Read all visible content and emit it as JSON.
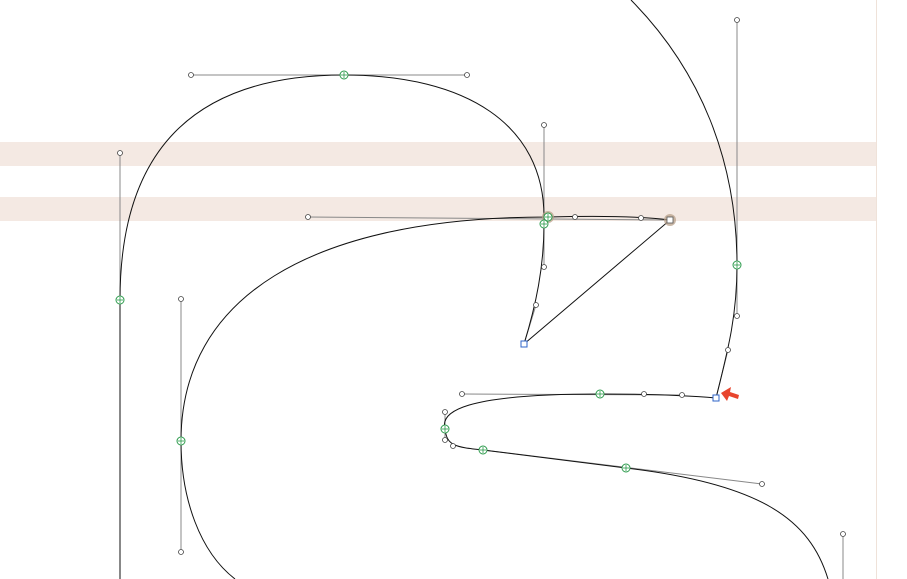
{
  "editor": {
    "view": "glyph-outline-canvas",
    "colors": {
      "background": "#ffffff",
      "guide_band": "#f4e9e3",
      "side_margin": "#efe2d9",
      "outline": "#111111",
      "smooth_point": "#2a9a4a",
      "corner_point": "#2f64c8",
      "handle": "#888888",
      "selected_point_highlight": "#b8a089",
      "cursor_arrow": "#e8452e"
    },
    "icons": {
      "cursor": "arrow-pointer-icon"
    }
  }
}
